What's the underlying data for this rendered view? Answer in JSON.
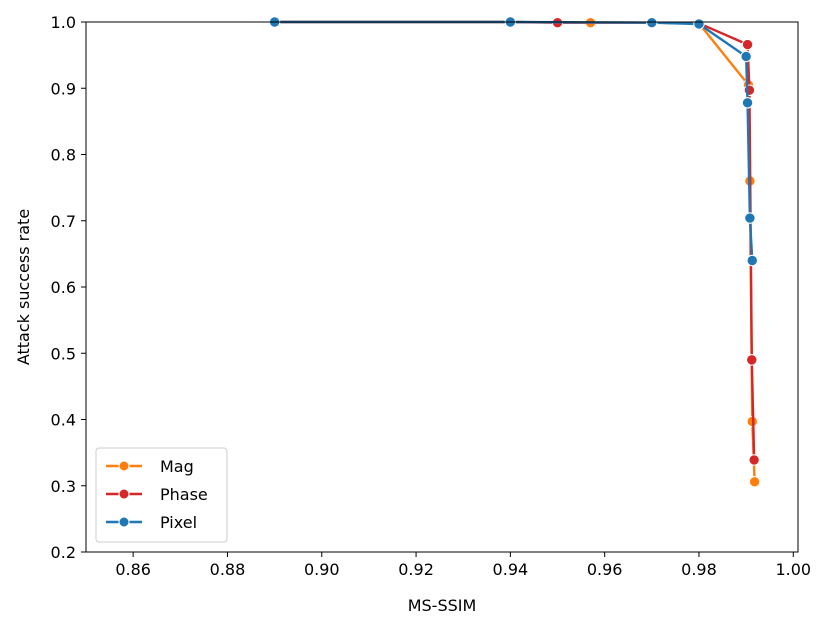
{
  "chart_data": {
    "type": "line",
    "title": "",
    "xlabel": "MS-SSIM",
    "ylabel": "Attack success rate",
    "xlim": [
      0.85,
      1.001
    ],
    "ylim": [
      0.2,
      1.0
    ],
    "xticks": [
      0.86,
      0.88,
      0.9,
      0.92,
      0.94,
      0.96,
      0.98,
      1.0
    ],
    "xtick_labels": [
      "0.86",
      "0.88",
      "0.90",
      "0.92",
      "0.94",
      "0.96",
      "0.98",
      "1.00"
    ],
    "yticks": [
      0.2,
      0.3,
      0.4,
      0.5,
      0.6,
      0.7,
      0.8,
      0.9,
      1.0
    ],
    "ytick_labels": [
      "0.2",
      "0.3",
      "0.4",
      "0.5",
      "0.6",
      "0.7",
      "0.8",
      "0.9",
      "1.0"
    ],
    "grid": false,
    "legend": "lower-left",
    "series": [
      {
        "name": "Mag",
        "color": "#ff7f0e",
        "points": [
          [
            0.89,
            1.0
          ],
          [
            0.94,
            1.0
          ],
          [
            0.957,
            0.999
          ],
          [
            0.97,
            0.999
          ],
          [
            0.98,
            0.998
          ],
          [
            0.9905,
            0.905
          ],
          [
            0.9908,
            0.76
          ],
          [
            0.9913,
            0.397
          ],
          [
            0.9918,
            0.306
          ]
        ]
      },
      {
        "name": "Phase",
        "color": "#d62728",
        "points": [
          [
            0.89,
            1.0
          ],
          [
            0.94,
            1.0
          ],
          [
            0.95,
            0.999
          ],
          [
            0.97,
            0.999
          ],
          [
            0.98,
            0.998
          ],
          [
            0.9903,
            0.966
          ],
          [
            0.9907,
            0.897
          ],
          [
            0.9912,
            0.49
          ],
          [
            0.9917,
            0.339
          ]
        ]
      },
      {
        "name": "Pixel",
        "color": "#1f77b4",
        "points": [
          [
            0.89,
            1.0
          ],
          [
            0.94,
            1.0
          ],
          [
            0.97,
            0.999
          ],
          [
            0.98,
            0.997
          ],
          [
            0.99,
            0.948
          ],
          [
            0.9903,
            0.878
          ],
          [
            0.9908,
            0.704
          ],
          [
            0.9913,
            0.64
          ]
        ]
      }
    ]
  }
}
